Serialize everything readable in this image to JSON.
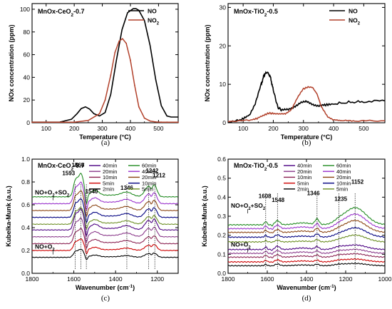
{
  "chart_data": [
    {
      "panel": "a",
      "type": "line",
      "caption": "(a)",
      "title": "MnOx-CeO2-0.7",
      "xlabel": "Temperature (°C)",
      "ylabel": "NOx concentration (ppm)",
      "xlim": [
        50,
        570
      ],
      "ylim": [
        0,
        105
      ],
      "xticks": [
        100,
        200,
        300,
        400,
        500
      ],
      "yticks": [
        0,
        20,
        40,
        60,
        80,
        100
      ],
      "legend": "top-right",
      "series": [
        {
          "name": "NO",
          "color": "#000000",
          "x": [
            50,
            150,
            190,
            210,
            225,
            240,
            255,
            270,
            290,
            310,
            330,
            350,
            370,
            390,
            410,
            420,
            430,
            450,
            470,
            490,
            510,
            530,
            545,
            570
          ],
          "y": [
            0.5,
            0.6,
            3,
            8,
            12.5,
            14,
            12,
            8,
            6,
            9,
            25,
            55,
            82,
            97,
            100.5,
            100.5,
            99,
            90,
            68,
            38,
            15,
            6,
            5,
            5
          ]
        },
        {
          "name": "NO2",
          "color": "#b2412b",
          "x": [
            50,
            200,
            250,
            290,
            310,
            330,
            345,
            360,
            372,
            385,
            400,
            415,
            430,
            450,
            470,
            490,
            510,
            530,
            570
          ],
          "y": [
            0.5,
            0.5,
            2,
            8,
            20,
            42,
            62,
            72,
            74,
            70,
            55,
            33,
            14,
            4,
            1.5,
            0.7,
            0.5,
            0.5,
            0.5
          ]
        }
      ]
    },
    {
      "panel": "b",
      "type": "line",
      "caption": "(b)",
      "title": "MnOx-TiO2-0.5",
      "xlabel": "Temperature (°C)",
      "ylabel": "NOx concentration (ppm)",
      "xlim": [
        50,
        570
      ],
      "ylim": [
        0,
        31
      ],
      "xticks": [
        100,
        200,
        300,
        400,
        500
      ],
      "yticks": [
        0,
        10,
        20,
        30
      ],
      "legend": "top-right",
      "series": [
        {
          "name": "NO",
          "color": "#000000",
          "x": [
            50,
            90,
            120,
            140,
            160,
            170,
            180,
            190,
            200,
            215,
            230,
            250,
            270,
            290,
            310,
            330,
            350,
            370,
            400,
            450,
            500,
            570
          ],
          "y": [
            0.3,
            0.6,
            2,
            5,
            10,
            12.5,
            13.2,
            12,
            8.5,
            4,
            3.2,
            3.4,
            4.3,
            5.2,
            5.4,
            4.8,
            4.5,
            4.6,
            4.9,
            5.3,
            5.5,
            5.7
          ]
        },
        {
          "name": "NO2",
          "color": "#b2412b",
          "x": [
            50,
            120,
            150,
            170,
            185,
            200,
            220,
            240,
            260,
            280,
            300,
            315,
            330,
            345,
            360,
            380,
            400,
            430,
            470,
            570
          ],
          "y": [
            0.4,
            0.6,
            1.2,
            2,
            2.5,
            2.4,
            2.2,
            2.3,
            3.5,
            6.5,
            8.8,
            9.3,
            9.2,
            7.5,
            4,
            1.5,
            0.8,
            0.5,
            0.5,
            0.5
          ]
        }
      ]
    },
    {
      "panel": "c",
      "type": "line",
      "caption": "(c)",
      "title": "MnOx-CeO2-0.7",
      "xlabel": "Wavenumber (cm-1)",
      "ylabel": "Kubelka-Munk (a.u.)",
      "xlim": [
        1800,
        1100
      ],
      "ylim": [
        0,
        1.0
      ],
      "xticks": [
        1800,
        1600,
        1400,
        1200
      ],
      "yticks": [
        0.0,
        0.2,
        0.4,
        0.6,
        0.8,
        1.0
      ],
      "legend_entries": [
        {
          "label": "40min",
          "color": "#4b0082"
        },
        {
          "label": "20min",
          "color": "#8b3a8b"
        },
        {
          "label": "10min",
          "color": "#8b2252"
        },
        {
          "label": "5min",
          "color": "#cd0000"
        },
        {
          "label": "2min",
          "color": "#000000"
        },
        {
          "label": "60min",
          "color": "#228b22"
        },
        {
          "label": "40min",
          "color": "#9932cc"
        },
        {
          "label": "20min",
          "color": "#8b4513"
        },
        {
          "label": "10min",
          "color": "#000080"
        },
        {
          "label": "5min",
          "color": "#6b8e23"
        }
      ],
      "group_labels": [
        "NO+O2+SO2",
        "NO+O2"
      ],
      "peak_labels": [
        "1593",
        "1566",
        "1540",
        "1346",
        "1242",
        "1212"
      ],
      "offsets": [
        0.67,
        0.61,
        0.55,
        0.49,
        0.43,
        0.38,
        0.32,
        0.26,
        0.2,
        0.14
      ]
    },
    {
      "panel": "d",
      "type": "line",
      "caption": "(d)",
      "title": "MnOx-TiO2-0.5",
      "xlabel": "Wavenumber (cm-1)",
      "ylabel": "Kubelka-Munk (a.u.)",
      "xlim": [
        1800,
        1000
      ],
      "ylim": [
        0,
        0.6
      ],
      "xticks": [
        1800,
        1600,
        1400,
        1200,
        1000
      ],
      "yticks": [
        0.0,
        0.1,
        0.2,
        0.3,
        0.4,
        0.5,
        0.6
      ],
      "legend_entries": [
        {
          "label": "40min",
          "color": "#4b0082"
        },
        {
          "label": "20min",
          "color": "#8b3a8b"
        },
        {
          "label": "10min",
          "color": "#8b2252"
        },
        {
          "label": "5min",
          "color": "#cd0000"
        },
        {
          "label": "2min",
          "color": "#000000"
        },
        {
          "label": "60min",
          "color": "#228b22"
        },
        {
          "label": "40min",
          "color": "#9932cc"
        },
        {
          "label": "20min",
          "color": "#8b4513"
        },
        {
          "label": "10min",
          "color": "#000080"
        },
        {
          "label": "5min",
          "color": "#6b8e23"
        }
      ],
      "group_labels": [
        "NO+O2+SO2",
        "NO+O2"
      ],
      "peak_labels": [
        "1608",
        "1548",
        "1346",
        "1235",
        "1152"
      ],
      "offsets": [
        0.255,
        0.235,
        0.215,
        0.19,
        0.165,
        0.125,
        0.105,
        0.085,
        0.06,
        0.04
      ]
    }
  ]
}
